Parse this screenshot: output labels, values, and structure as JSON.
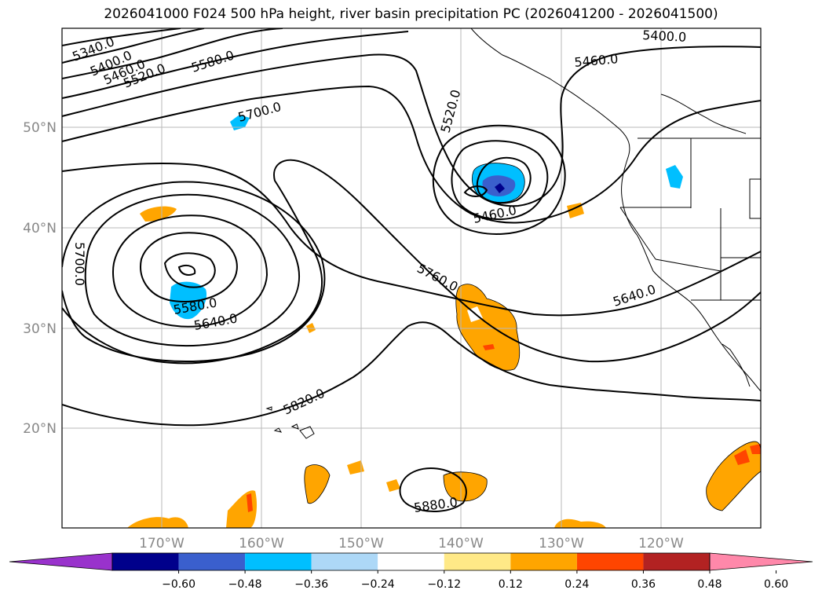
{
  "title": "2026041000 F024 500 hPa height, river basin precipitation PC (2026041200 - 2026041500)",
  "lat_labels": [
    "50°N",
    "40°N",
    "30°N",
    "20°N"
  ],
  "lon_labels": [
    "170°W",
    "160°W",
    "150°W",
    "140°W",
    "130°W",
    "120°W"
  ],
  "contour_labels": [
    "5340.0",
    "5400.0",
    "5460.0",
    "5520.0",
    "5580.0",
    "5700.0",
    "5520.0",
    "5400.0",
    "5460.0",
    "5460.0",
    "5700.0",
    "5580.0",
    "5640.0",
    "5760.0",
    "5640.0",
    "5820.0",
    "5880.0"
  ],
  "colorbar": {
    "ticks": [
      "−0.60",
      "−0.48",
      "−0.36",
      "−0.24",
      "−0.12",
      "0.12",
      "0.24",
      "0.36",
      "0.48",
      "0.60"
    ],
    "colors": [
      "#9932cc",
      "#00008b",
      "#3a5fcd",
      "#00bfff",
      "#add8f7",
      "#ffffff",
      "#ffe987",
      "#ffa500",
      "#ff4500",
      "#b22222",
      "#ff88aa"
    ]
  }
}
